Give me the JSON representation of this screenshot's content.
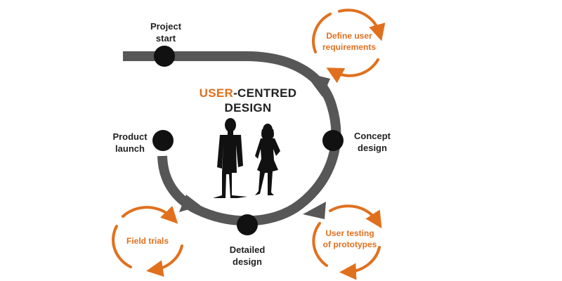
{
  "colors": {
    "accent": "#e0701e",
    "arrow": "#575757",
    "node": "#111111",
    "text": "#222222"
  },
  "title": {
    "accent": "USER",
    "rest_line1": "-CENTRED",
    "line2": "DESIGN"
  },
  "stages": {
    "project_start": "Project\nstart",
    "concept_design": "Concept\ndesign",
    "detailed_design": "Detailed\ndesign",
    "product_launch": "Product\nlaunch"
  },
  "cycles": {
    "define_user_requirements": "Define user\nrequirements",
    "user_testing": "User testing\nof prototypes",
    "field_trials": "Field trials"
  },
  "icons": [
    "man-silhouette-icon",
    "woman-silhouette-icon",
    "cycle-arrows-icon"
  ]
}
